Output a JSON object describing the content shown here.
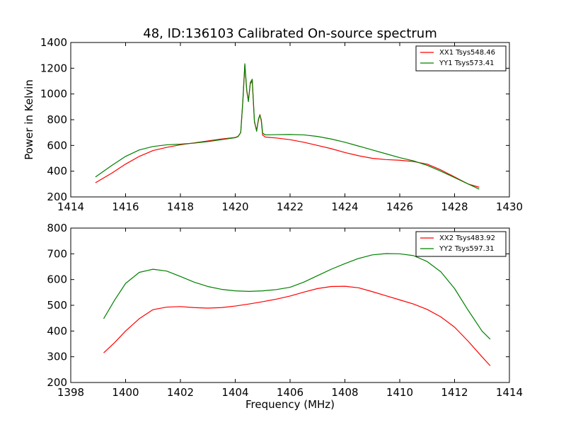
{
  "figure": {
    "title": "48, ID:136103 Calibrated On-source spectrum"
  },
  "chart_data": [
    {
      "type": "line",
      "title": "48, ID:136103 Calibrated On-source spectrum",
      "xlabel": "",
      "ylabel": "Power in Kelvin",
      "xlim": [
        1414,
        1430
      ],
      "ylim": [
        200,
        1400
      ],
      "xticks": [
        1414,
        1416,
        1418,
        1420,
        1422,
        1424,
        1426,
        1428,
        1430
      ],
      "yticks": [
        200,
        400,
        600,
        800,
        1000,
        1200,
        1400
      ],
      "grid": false,
      "legend": "top-right",
      "series": [
        {
          "name": "XX1 Tsys548.46",
          "color": "#ff0000",
          "x": [
            1414.9,
            1415.5,
            1416.0,
            1416.5,
            1417.0,
            1417.5,
            1418.0,
            1418.5,
            1419.0,
            1419.5,
            1420.0,
            1420.1,
            1420.2,
            1420.28,
            1420.35,
            1420.42,
            1420.48,
            1420.55,
            1420.62,
            1420.7,
            1420.78,
            1420.85,
            1420.9,
            1420.95,
            1421.0,
            1421.1,
            1421.5,
            1422.0,
            1422.5,
            1423.0,
            1423.5,
            1424.0,
            1424.5,
            1425.0,
            1425.5,
            1426.0,
            1426.5,
            1427.0,
            1427.5,
            1428.0,
            1428.5,
            1428.9
          ],
          "values": [
            310,
            385,
            455,
            515,
            560,
            585,
            605,
            620,
            635,
            650,
            662,
            670,
            700,
            950,
            1225,
            1020,
            950,
            1080,
            1100,
            780,
            720,
            800,
            840,
            790,
            680,
            665,
            658,
            645,
            625,
            600,
            575,
            545,
            520,
            500,
            490,
            485,
            475,
            455,
            410,
            355,
            300,
            275
          ]
        },
        {
          "name": "YY1 Tsys573.41",
          "color": "#008000",
          "x": [
            1414.9,
            1415.5,
            1416.0,
            1416.5,
            1417.0,
            1417.5,
            1418.0,
            1418.5,
            1419.0,
            1419.5,
            1420.0,
            1420.1,
            1420.2,
            1420.28,
            1420.35,
            1420.42,
            1420.48,
            1420.55,
            1420.62,
            1420.7,
            1420.78,
            1420.85,
            1420.9,
            1420.95,
            1421.0,
            1421.1,
            1421.5,
            1422.0,
            1422.5,
            1423.0,
            1423.5,
            1424.0,
            1424.5,
            1425.0,
            1425.5,
            1426.0,
            1426.5,
            1427.0,
            1427.5,
            1428.0,
            1428.5,
            1428.9
          ],
          "values": [
            355,
            445,
            515,
            565,
            592,
            605,
            610,
            618,
            630,
            645,
            660,
            668,
            700,
            960,
            1235,
            1030,
            940,
            1090,
            1115,
            790,
            710,
            810,
            835,
            800,
            695,
            682,
            684,
            685,
            682,
            670,
            650,
            625,
            595,
            565,
            535,
            505,
            480,
            445,
            400,
            350,
            300,
            260
          ]
        }
      ]
    },
    {
      "type": "line",
      "title": "",
      "xlabel": "Frequency (MHz)",
      "ylabel": "",
      "xlim": [
        1398,
        1414
      ],
      "ylim": [
        200,
        800
      ],
      "xticks": [
        1398,
        1400,
        1402,
        1404,
        1406,
        1408,
        1410,
        1412,
        1414
      ],
      "yticks": [
        200,
        300,
        400,
        500,
        600,
        700,
        800
      ],
      "grid": false,
      "legend": "top-right",
      "series": [
        {
          "name": "XX2 Tsys483.92",
          "color": "#ff0000",
          "x": [
            1399.2,
            1399.6,
            1400.0,
            1400.5,
            1401.0,
            1401.5,
            1402.0,
            1402.5,
            1403.0,
            1403.5,
            1404.0,
            1404.5,
            1405.0,
            1405.5,
            1406.0,
            1406.5,
            1407.0,
            1407.5,
            1408.0,
            1408.5,
            1409.0,
            1409.5,
            1410.0,
            1410.5,
            1411.0,
            1411.5,
            1412.0,
            1412.5,
            1413.0,
            1413.3
          ],
          "values": [
            315,
            355,
            400,
            448,
            483,
            493,
            495,
            491,
            489,
            491,
            497,
            505,
            514,
            524,
            536,
            551,
            565,
            573,
            574,
            568,
            553,
            537,
            521,
            505,
            484,
            455,
            415,
            360,
            300,
            265
          ]
        },
        {
          "name": "YY2 Tsys597.31",
          "color": "#008000",
          "x": [
            1399.2,
            1399.6,
            1400.0,
            1400.5,
            1401.0,
            1401.5,
            1402.0,
            1402.5,
            1403.0,
            1403.5,
            1404.0,
            1404.5,
            1405.0,
            1405.5,
            1406.0,
            1406.5,
            1407.0,
            1407.5,
            1408.0,
            1408.5,
            1409.0,
            1409.5,
            1410.0,
            1410.5,
            1411.0,
            1411.5,
            1412.0,
            1412.5,
            1413.0,
            1413.3
          ],
          "values": [
            448,
            520,
            585,
            628,
            640,
            633,
            612,
            590,
            573,
            562,
            556,
            554,
            556,
            561,
            570,
            590,
            615,
            640,
            662,
            682,
            696,
            701,
            700,
            693,
            670,
            630,
            565,
            480,
            400,
            368
          ]
        }
      ]
    }
  ]
}
